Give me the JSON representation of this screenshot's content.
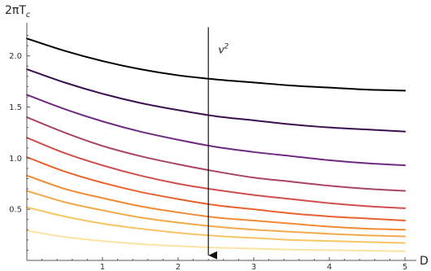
{
  "chart_data": {
    "type": "line",
    "title": "",
    "xlabel": "D",
    "ylabel": {
      "main": "2πT",
      "sub": "c"
    },
    "xlim": [
      0,
      5
    ],
    "ylim": [
      0,
      2.3
    ],
    "xticks": [
      1,
      2,
      3,
      4,
      5
    ],
    "yticks": [
      0.5,
      1.0,
      1.5,
      2.0
    ],
    "xtick_labels": [
      "1",
      "2",
      "3",
      "4",
      "5"
    ],
    "ytick_labels": [
      "0.5",
      "1.0",
      "1.5",
      "2.0"
    ],
    "grid": false,
    "annotation": {
      "text": "v",
      "superscript": "2",
      "arrow_x": 2.4,
      "arrow_from_y": 2.28,
      "arrow_to_y": 0.05
    },
    "series": [
      {
        "color": "#000000",
        "x": [
          0,
          0.5,
          1,
          1.5,
          2,
          2.5,
          3,
          3.5,
          4,
          4.5,
          5
        ],
        "values": [
          2.17,
          2.05,
          1.95,
          1.87,
          1.81,
          1.77,
          1.74,
          1.71,
          1.69,
          1.67,
          1.66
        ]
      },
      {
        "color": "#3b0f4f",
        "x": [
          0,
          0.5,
          1,
          1.5,
          2,
          2.5,
          3,
          3.5,
          4,
          4.5,
          5
        ],
        "values": [
          1.87,
          1.74,
          1.63,
          1.54,
          1.47,
          1.41,
          1.37,
          1.33,
          1.3,
          1.28,
          1.26
        ]
      },
      {
        "color": "#6e2a80",
        "x": [
          0,
          0.5,
          1,
          1.5,
          2,
          2.5,
          3,
          3.5,
          4,
          4.5,
          5
        ],
        "values": [
          1.62,
          1.48,
          1.36,
          1.26,
          1.18,
          1.11,
          1.06,
          1.02,
          0.98,
          0.95,
          0.93
        ]
      },
      {
        "color": "#a8436a",
        "x": [
          0,
          0.5,
          1,
          1.5,
          2,
          2.5,
          3,
          3.5,
          4,
          4.5,
          5
        ],
        "values": [
          1.4,
          1.25,
          1.12,
          1.02,
          0.94,
          0.87,
          0.81,
          0.77,
          0.73,
          0.7,
          0.68
        ]
      },
      {
        "color": "#d04e4c",
        "x": [
          0,
          0.5,
          1,
          1.5,
          2,
          2.5,
          3,
          3.5,
          4,
          4.5,
          5
        ],
        "values": [
          1.2,
          1.05,
          0.93,
          0.83,
          0.75,
          0.69,
          0.64,
          0.6,
          0.56,
          0.53,
          0.51
        ]
      },
      {
        "color": "#e8622e",
        "x": [
          0,
          0.5,
          1,
          1.5,
          2,
          2.5,
          3,
          3.5,
          4,
          4.5,
          5
        ],
        "values": [
          1.01,
          0.87,
          0.76,
          0.67,
          0.6,
          0.54,
          0.5,
          0.46,
          0.43,
          0.41,
          0.39
        ]
      },
      {
        "color": "#f08a34",
        "x": [
          0,
          0.5,
          1,
          1.5,
          2,
          2.5,
          3,
          3.5,
          4,
          4.5,
          5
        ],
        "values": [
          0.83,
          0.7,
          0.61,
          0.53,
          0.47,
          0.42,
          0.39,
          0.36,
          0.33,
          0.31,
          0.3
        ]
      },
      {
        "color": "#f3a94a",
        "x": [
          0,
          0.5,
          1,
          1.5,
          2,
          2.5,
          3,
          3.5,
          4,
          4.5,
          5
        ],
        "values": [
          0.68,
          0.57,
          0.49,
          0.42,
          0.37,
          0.33,
          0.3,
          0.28,
          0.26,
          0.245,
          0.235
        ]
      },
      {
        "color": "#f7c565",
        "x": [
          0,
          0.5,
          1,
          1.5,
          2,
          2.5,
          3,
          3.5,
          4,
          4.5,
          5
        ],
        "values": [
          0.52,
          0.43,
          0.36,
          0.31,
          0.27,
          0.24,
          0.22,
          0.2,
          0.19,
          0.18,
          0.17
        ]
      },
      {
        "color": "#fae3a3",
        "x": [
          0,
          0.5,
          1,
          1.5,
          2,
          2.5,
          3,
          3.5,
          4,
          4.5,
          5
        ],
        "values": [
          0.29,
          0.23,
          0.19,
          0.16,
          0.14,
          0.125,
          0.115,
          0.105,
          0.1,
          0.095,
          0.09
        ]
      }
    ]
  }
}
